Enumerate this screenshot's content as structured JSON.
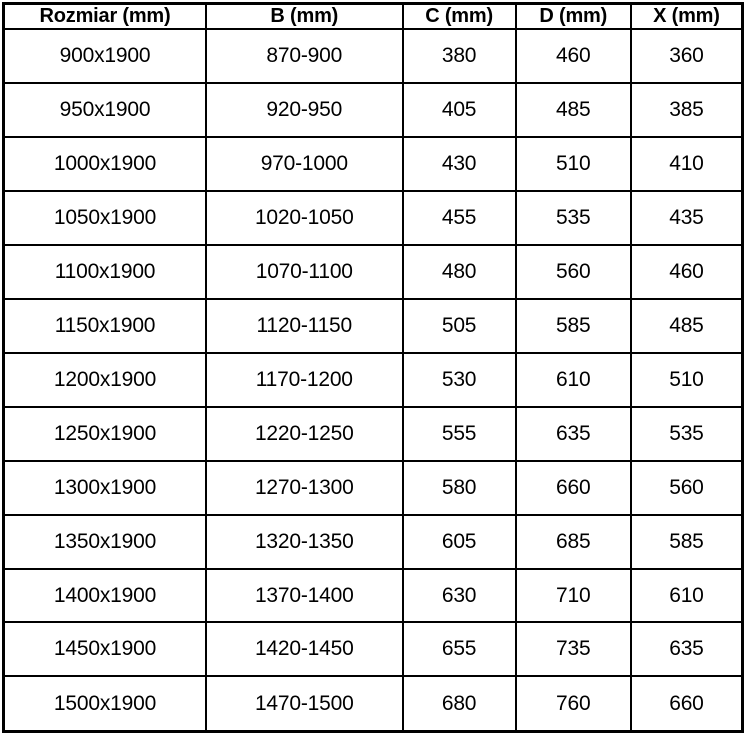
{
  "colors": {
    "background": "#ffffff",
    "border": "#000000",
    "text": "#000000"
  },
  "chart_data": {
    "type": "table",
    "title": "",
    "columns": [
      "Rozmiar (mm)",
      "B (mm)",
      "C (mm)",
      "D (mm)",
      "X (mm)"
    ],
    "rows": [
      [
        "900x1900",
        "870-900",
        "380",
        "460",
        "360"
      ],
      [
        "950x1900",
        "920-950",
        "405",
        "485",
        "385"
      ],
      [
        "1000x1900",
        "970-1000",
        "430",
        "510",
        "410"
      ],
      [
        "1050x1900",
        "1020-1050",
        "455",
        "535",
        "435"
      ],
      [
        "1100x1900",
        "1070-1100",
        "480",
        "560",
        "460"
      ],
      [
        "1150x1900",
        "1120-1150",
        "505",
        "585",
        "485"
      ],
      [
        "1200x1900",
        "1170-1200",
        "530",
        "610",
        "510"
      ],
      [
        "1250x1900",
        "1220-1250",
        "555",
        "635",
        "535"
      ],
      [
        "1300x1900",
        "1270-1300",
        "580",
        "660",
        "560"
      ],
      [
        "1350x1900",
        "1320-1350",
        "605",
        "685",
        "585"
      ],
      [
        "1400x1900",
        "1370-1400",
        "630",
        "710",
        "610"
      ],
      [
        "1450x1900",
        "1420-1450",
        "655",
        "735",
        "635"
      ],
      [
        "1500x1900",
        "1470-1500",
        "680",
        "760",
        "660"
      ]
    ]
  }
}
